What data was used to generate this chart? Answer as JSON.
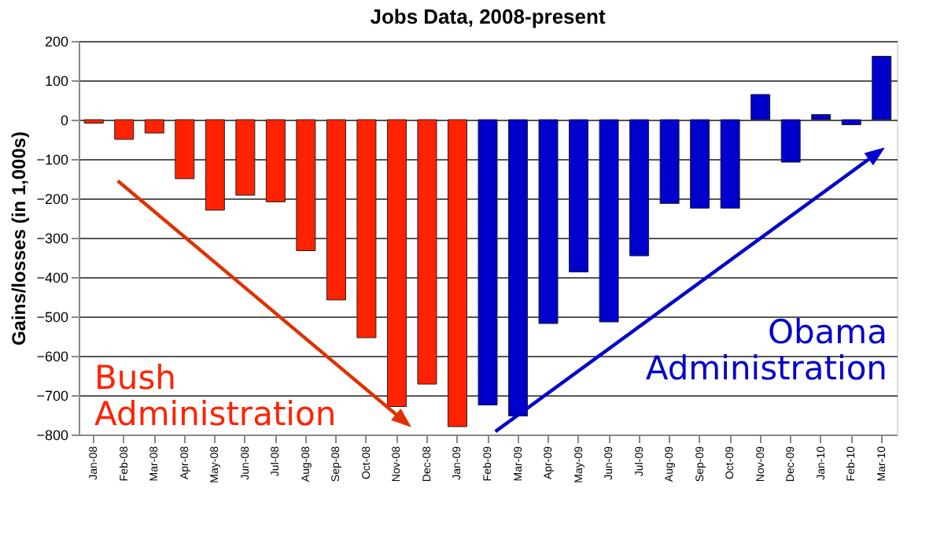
{
  "chart_data": {
    "type": "bar",
    "title": "Jobs Data, 2008-present",
    "ylabel": "Gains/losses (in 1,000s)",
    "categories": [
      "Jan-08",
      "Feb-08",
      "Mar-08",
      "Apr-08",
      "May-08",
      "Jun-08",
      "Jul-08",
      "Aug-08",
      "Sep-08",
      "Oct-08",
      "Nov-08",
      "Dec-08",
      "Jan-09",
      "Feb-09",
      "Mar-09",
      "Apr-09",
      "May-09",
      "Jun-09",
      "Jul-09",
      "Aug-09",
      "Sep-09",
      "Oct-09",
      "Nov-09",
      "Dec-09",
      "Jan-10",
      "Feb-10",
      "Mar-10"
    ],
    "series": [
      {
        "color": "#ff2200",
        "values": [
          -9,
          -50,
          -34,
          -150,
          -230,
          -192,
          -209,
          -333,
          -458,
          -554,
          -729,
          -672,
          -780,
          null,
          null,
          null,
          null,
          null,
          null,
          null,
          null,
          null,
          null,
          null,
          null,
          null,
          null
        ]
      },
      {
        "color": "#0000cc",
        "values": [
          null,
          null,
          null,
          null,
          null,
          null,
          null,
          null,
          null,
          null,
          null,
          null,
          null,
          -725,
          -753,
          -518,
          -387,
          -514,
          -346,
          -213,
          -225,
          -225,
          64,
          -108,
          13,
          -13,
          161
        ]
      }
    ],
    "annotations": [
      "Bush Administration",
      "Obama Administration"
    ],
    "ylim": [
      -800,
      200
    ],
    "yticks": [
      -800,
      -700,
      -600,
      -500,
      -400,
      -300,
      -200,
      -100,
      0,
      100,
      200
    ],
    "grid": "y",
    "legend": false
  }
}
